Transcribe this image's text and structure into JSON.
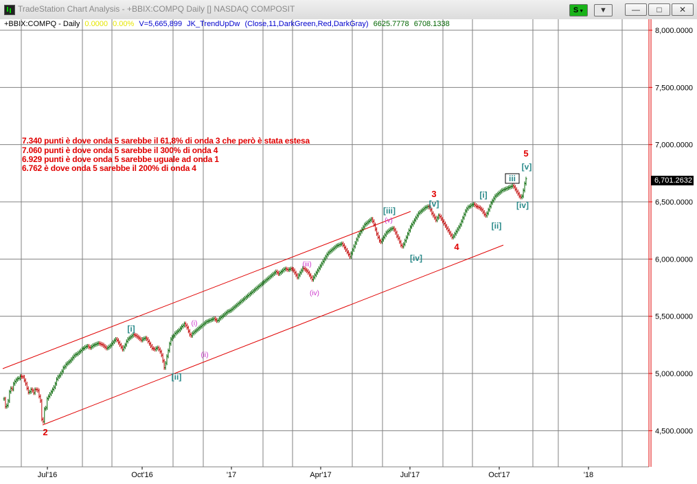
{
  "window": {
    "title": "TradeStation Chart Analysis - +BBIX:COMPQ Daily [] NASDAQ COMPOSIT",
    "s_button": "S",
    "s_arrow": "▼",
    "d_button": "▼",
    "minimize": "—",
    "maximize": "□",
    "close": "✕"
  },
  "chart_info": {
    "symbol": "+BBIX:COMPQ - Daily",
    "change": "0.0000",
    "change_pct": "0.00%",
    "volume": "V=5,665,899",
    "indicator": "JK_TrendUpDw",
    "params": "(Close,11,DarkGreen,Red,DarkGray)",
    "ind_value1": "6625.7778",
    "ind_value2": "6708.1338"
  },
  "annotations": [
    "7.340 punti è dove onda 5 sarebbe il 61,8% di onda 3 che però è stata estesa",
    "7.060 punti è dove onda 5 sarebbe il 300% di onda 4",
    "6.929 punti è dove onda 5 sarebbe uguale ad onda 1",
    "6.762 è dove onda 5 sarebbe il 200% di onda 4"
  ],
  "last_price_label": "6,701.2632",
  "colors": {
    "up_bar": "#006400",
    "down_bar": "#c00000",
    "wave_red": "#e00000",
    "wave_teal": "#2a8a8a",
    "wave_magenta": "#cc33cc",
    "channel": "#e00000",
    "grid": "#808080",
    "price_axis": "#e00000"
  },
  "chart_data": {
    "type": "candlestick",
    "title": "+BBIX:COMPQ - Daily",
    "x_ticks": [
      "Jul'16",
      "Oct'16",
      "'17",
      "Apr'17",
      "Jul'17",
      "Oct'17",
      "'18"
    ],
    "y_ticks": [
      "4,500.0000",
      "5,000.0000",
      "5,500.0000",
      "6,000.0000",
      "6,500.0000",
      "7,000.0000",
      "7,500.0000",
      "8,000.0000"
    ],
    "ylim": [
      4200,
      8060
    ],
    "grid": true,
    "last_price": 6701.2632,
    "closes": [
      4778,
      4710,
      4720,
      4760,
      4840,
      4870,
      4862,
      4910,
      4930,
      4945,
      4955,
      4958,
      4975,
      4971,
      4970,
      4940,
      4910,
      4870,
      4835,
      4840,
      4860,
      4850,
      4830,
      4860,
      4859,
      4850,
      4800,
      4760,
      4600,
      4580,
      4690,
      4700,
      4780,
      4800,
      4820,
      4840,
      4860,
      4880,
      4910,
      4950,
      4970,
      4980,
      5000,
      5020,
      5050,
      5060,
      5080,
      5090,
      5100,
      5110,
      5125,
      5140,
      5155,
      5165,
      5170,
      5180,
      5190,
      5200,
      5215,
      5220,
      5230,
      5236,
      5240,
      5230,
      5225,
      5235,
      5245,
      5250,
      5255,
      5260,
      5265,
      5260,
      5255,
      5250,
      5240,
      5230,
      5220,
      5225,
      5235,
      5245,
      5260,
      5275,
      5290,
      5300,
      5290,
      5270,
      5250,
      5230,
      5210,
      5230,
      5250,
      5280,
      5300,
      5310,
      5320,
      5330,
      5340,
      5335,
      5330,
      5320,
      5310,
      5300,
      5290,
      5300,
      5305,
      5310,
      5300,
      5280,
      5260,
      5240,
      5220,
      5215,
      5210,
      5220,
      5225,
      5210,
      5190,
      5160,
      5110,
      5050,
      5090,
      5150,
      5200,
      5260,
      5300,
      5320,
      5330,
      5350,
      5360,
      5370,
      5380,
      5395,
      5410,
      5420,
      5435,
      5420,
      5400,
      5370,
      5340,
      5330,
      5350,
      5360,
      5370,
      5380,
      5390,
      5400,
      5410,
      5420,
      5430,
      5440,
      5450,
      5455,
      5460,
      5465,
      5470,
      5475,
      5480,
      5470,
      5460,
      5465,
      5480,
      5490,
      5500,
      5510,
      5520,
      5530,
      5540,
      5545,
      5550,
      5560,
      5570,
      5580,
      5590,
      5600,
      5610,
      5620,
      5630,
      5640,
      5650,
      5660,
      5670,
      5680,
      5690,
      5700,
      5710,
      5720,
      5730,
      5740,
      5750,
      5760,
      5770,
      5780,
      5790,
      5800,
      5810,
      5820,
      5830,
      5840,
      5850,
      5860,
      5870,
      5880,
      5890,
      5880,
      5870,
      5880,
      5890,
      5900,
      5910,
      5915,
      5910,
      5905,
      5910,
      5915,
      5912,
      5900,
      5880,
      5860,
      5840,
      5860,
      5880,
      5900,
      5920,
      5915,
      5905,
      5895,
      5880,
      5860,
      5840,
      5820,
      5840,
      5860,
      5880,
      5900,
      5920,
      5940,
      5960,
      5980,
      6000,
      6020,
      6040,
      6055,
      6065,
      6075,
      6085,
      6095,
      6105,
      6115,
      6120,
      6125,
      6130,
      6135,
      6120,
      6100,
      6080,
      6060,
      6040,
      6020,
      6050,
      6080,
      6110,
      6140,
      6170,
      6200,
      6220,
      6240,
      6260,
      6280,
      6300,
      6310,
      6320,
      6330,
      6340,
      6350,
      6330,
      6300,
      6260,
      6220,
      6190,
      6160,
      6150,
      6170,
      6190,
      6210,
      6230,
      6240,
      6250,
      6260,
      6265,
      6270,
      6255,
      6230,
      6200,
      6180,
      6150,
      6120,
      6110,
      6130,
      6160,
      6190,
      6220,
      6250,
      6280,
      6300,
      6320,
      6340,
      6360,
      6380,
      6400,
      6410,
      6420,
      6430,
      6440,
      6450,
      6455,
      6460,
      6450,
      6430,
      6400,
      6380,
      6360,
      6340,
      6360,
      6380,
      6370,
      6350,
      6330,
      6310,
      6290,
      6270,
      6250,
      6230,
      6210,
      6190,
      6200,
      6220,
      6240,
      6260,
      6280,
      6300,
      6330,
      6360,
      6390,
      6420,
      6440,
      6455,
      6460,
      6470,
      6475,
      6480,
      6470,
      6460,
      6455,
      6450,
      6440,
      6430,
      6410,
      6390,
      6380,
      6400,
      6430,
      6460,
      6490,
      6510,
      6530,
      6550,
      6560,
      6570,
      6580,
      6590,
      6600,
      6605,
      6610,
      6615,
      6620,
      6625,
      6630,
      6635,
      6640,
      6630,
      6610,
      6590,
      6570,
      6550,
      6540,
      6550,
      6600,
      6660,
      6701
    ]
  },
  "waves": [
    {
      "text": "2",
      "color": "red"
    },
    {
      "text": "[i]",
      "color": "teal"
    },
    {
      "text": "[ii]",
      "color": "teal"
    },
    {
      "text": "(i)",
      "color": "magenta"
    },
    {
      "text": "(ii)",
      "color": "magenta"
    },
    {
      "text": "(iii)",
      "color": "magenta"
    },
    {
      "text": "(iv)",
      "color": "magenta"
    },
    {
      "text": "[iii]",
      "color": "teal"
    },
    {
      "text": "(v)",
      "color": "magenta"
    },
    {
      "text": "[iv]",
      "color": "teal"
    },
    {
      "text": "3",
      "color": "red"
    },
    {
      "text": "[v]",
      "color": "teal"
    },
    {
      "text": "4",
      "color": "red"
    },
    {
      "text": "[i]",
      "color": "teal"
    },
    {
      "text": "[ii]",
      "color": "teal"
    },
    {
      "text": "iii",
      "color": "teal",
      "boxed": true
    },
    {
      "text": "[iv]",
      "color": "teal"
    },
    {
      "text": "5",
      "color": "red"
    },
    {
      "text": "[v]",
      "color": "teal"
    }
  ]
}
